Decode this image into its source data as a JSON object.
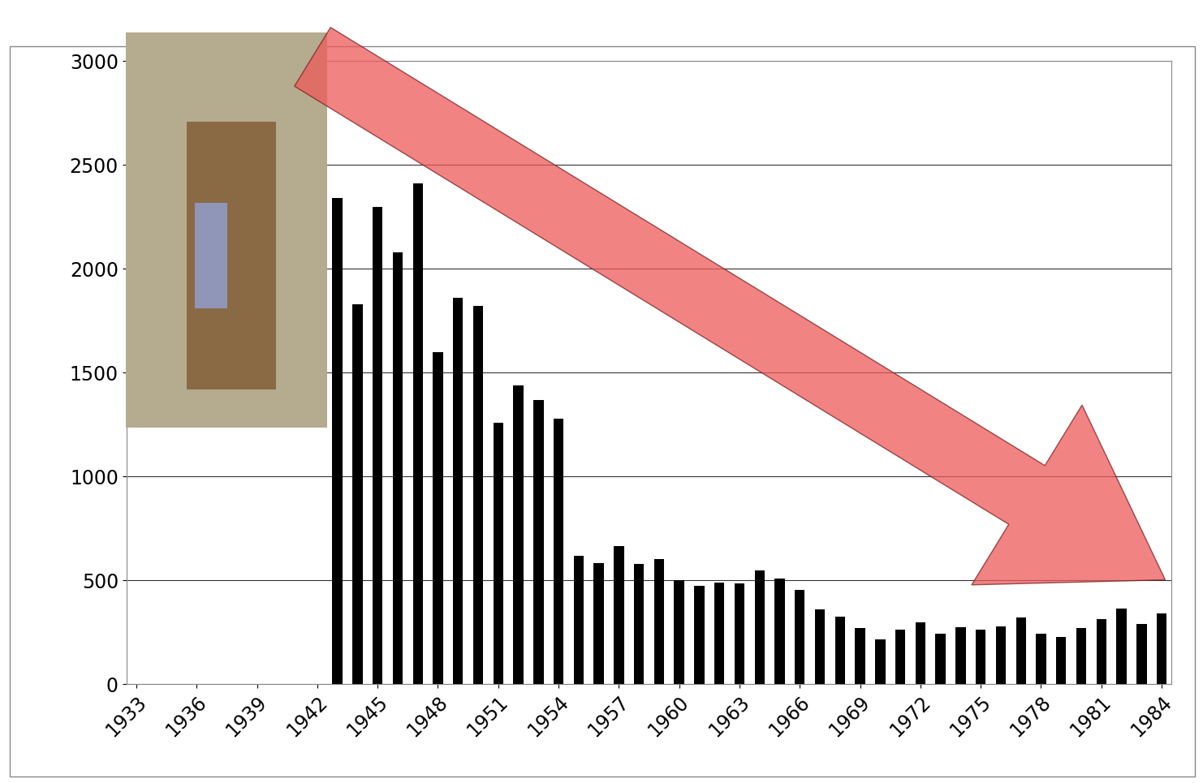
{
  "chart_data": {
    "type": "bar",
    "categories": [
      "1933",
      null,
      null,
      "1936",
      null,
      null,
      "1939",
      null,
      null,
      "1942",
      null,
      null,
      "1945",
      null,
      null,
      "1948",
      null,
      null,
      "1951",
      null,
      null,
      "1954",
      null,
      null,
      "1957",
      null,
      null,
      "1960",
      null,
      null,
      "1963",
      null,
      null,
      "1966",
      null,
      null,
      "1969",
      null,
      null,
      "1972",
      null,
      null,
      "1975",
      null,
      null,
      "1978",
      null,
      null,
      "1981",
      null,
      null,
      "1984"
    ],
    "values": [
      0,
      0,
      0,
      0,
      0,
      0,
      0,
      0,
      0,
      0,
      2340,
      1830,
      2300,
      2080,
      2410,
      1600,
      1860,
      1820,
      1260,
      1440,
      1370,
      1280,
      620,
      585,
      665,
      580,
      605,
      500,
      475,
      490,
      485,
      550,
      510,
      455,
      360,
      325,
      270,
      215,
      265,
      300,
      245,
      275,
      265,
      280,
      320,
      245,
      230,
      270,
      315,
      365,
      290,
      340
    ],
    "color": "#000000",
    "ylim": [
      0,
      3000
    ],
    "yticks": [
      0,
      500,
      1000,
      1500,
      2000,
      2500,
      3000
    ],
    "grid": true
  }
}
